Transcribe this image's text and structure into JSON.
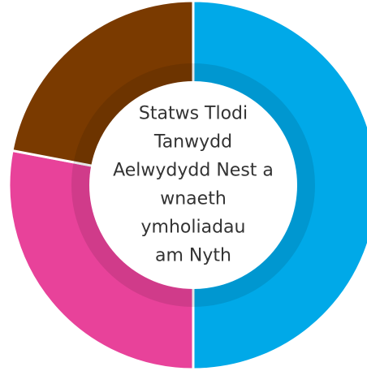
{
  "chart_data": {
    "type": "pie",
    "title": [
      "Statws Tlodi",
      "Tanwydd",
      "Aelwydydd Nest a",
      "wnaeth",
      "ymholiadau",
      "am Nyth"
    ],
    "values": [
      50,
      28,
      22
    ],
    "colors": [
      "#00a9e8",
      "#e8429a",
      "#7a3a00"
    ],
    "donut": true
  }
}
